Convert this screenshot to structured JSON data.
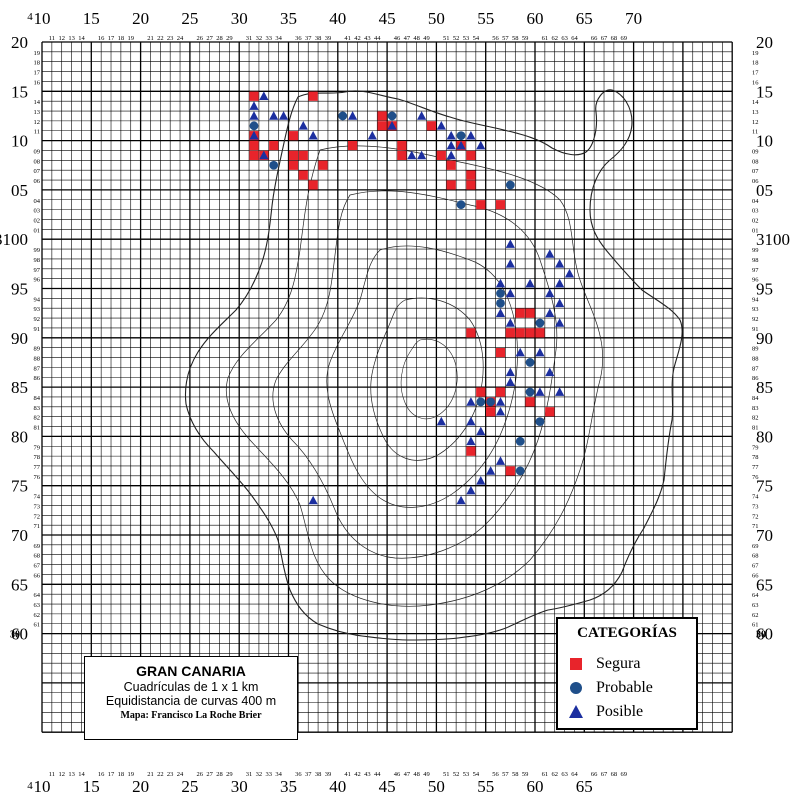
{
  "map": {
    "x_top_labels": [
      "10",
      "15",
      "20",
      "25",
      "30",
      "35",
      "40",
      "45",
      "50",
      "55",
      "60",
      "65",
      "70"
    ],
    "x_bottom_labels": [
      "10",
      "15",
      "20",
      "25",
      "30",
      "35",
      "40",
      "45",
      "50",
      "55",
      "60",
      "65"
    ],
    "x_corner_label_top": "4",
    "x_corner_label_bottom": "4",
    "y_major_labels": [
      "20",
      "15",
      "10",
      "05",
      "3100",
      "95",
      "90",
      "85",
      "80",
      "75",
      "70",
      "65",
      "60"
    ],
    "y_corner_label": "30",
    "small_x_labels": [
      "11",
      "12",
      "13",
      "14",
      "16",
      "17",
      "18",
      "19",
      "21",
      "22",
      "23",
      "24",
      "26",
      "27",
      "28",
      "29",
      "31",
      "32",
      "33",
      "34",
      "36",
      "37",
      "38",
      "39",
      "41",
      "42",
      "43",
      "44",
      "46",
      "47",
      "48",
      "49",
      "51",
      "52",
      "53",
      "54",
      "56",
      "57",
      "58",
      "59",
      "61",
      "62",
      "63",
      "64",
      "66",
      "67",
      "68",
      "69"
    ],
    "small_y_labels": [
      "19",
      "18",
      "17",
      "16",
      "14",
      "13",
      "12",
      "11",
      "09",
      "08",
      "07",
      "06",
      "04",
      "03",
      "02",
      "01",
      "99",
      "98",
      "97",
      "96",
      "94",
      "93",
      "92",
      "91",
      "89",
      "88",
      "87",
      "86",
      "84",
      "83",
      "82",
      "81",
      "79",
      "78",
      "77",
      "76",
      "74",
      "73",
      "72",
      "71",
      "69",
      "68",
      "67",
      "66",
      "64",
      "63",
      "62",
      "61"
    ],
    "colors": {
      "segura": "#e8242b",
      "probable": "#1f4f8a",
      "posible": "#1c2fa0",
      "grid": "#000000"
    }
  },
  "title_box": {
    "title": "GRAN CANARIA",
    "line1": "Cuadrículas de 1 x 1 km",
    "line2": "Equidistancia de curvas 400 m",
    "line3": "Mapa: Francisco La Roche Brier"
  },
  "legend": {
    "title": "CATEGORÍAS",
    "items": [
      {
        "label": "Segura",
        "symbol": "square"
      },
      {
        "label": "Probable",
        "symbol": "circle"
      },
      {
        "label": "Posible",
        "symbol": "triangle"
      }
    ]
  },
  "observations": {
    "segura": [
      [
        31,
        15
      ],
      [
        37,
        15
      ],
      [
        44,
        13
      ],
      [
        49,
        12
      ],
      [
        31,
        11
      ],
      [
        35,
        11
      ],
      [
        44,
        12
      ],
      [
        45,
        12
      ],
      [
        41,
        10
      ],
      [
        31,
        10
      ],
      [
        33,
        10
      ],
      [
        46,
        10
      ],
      [
        52,
        10
      ],
      [
        31,
        9
      ],
      [
        32,
        9
      ],
      [
        35,
        9
      ],
      [
        36,
        9
      ],
      [
        46,
        9
      ],
      [
        50,
        9
      ],
      [
        53,
        9
      ],
      [
        35,
        8
      ],
      [
        38,
        8
      ],
      [
        51,
        8
      ],
      [
        36,
        7
      ],
      [
        53,
        7
      ],
      [
        37,
        6
      ],
      [
        51,
        6
      ],
      [
        53,
        6
      ],
      [
        54,
        4
      ],
      [
        56,
        4
      ],
      [
        58,
        93
      ],
      [
        59,
        93
      ],
      [
        57,
        91
      ],
      [
        58,
        91
      ],
      [
        59,
        91
      ],
      [
        60,
        91
      ],
      [
        53,
        91
      ],
      [
        56,
        89
      ],
      [
        54,
        85
      ],
      [
        56,
        85
      ],
      [
        55,
        84
      ],
      [
        59,
        84
      ],
      [
        55,
        83
      ],
      [
        61,
        83
      ],
      [
        53,
        79
      ],
      [
        57,
        77
      ]
    ],
    "probable": [
      [
        40,
        13
      ],
      [
        45,
        13
      ],
      [
        31,
        12
      ],
      [
        52,
        11
      ],
      [
        33,
        8
      ],
      [
        52,
        4
      ],
      [
        57,
        6
      ],
      [
        56,
        95
      ],
      [
        56,
        94
      ],
      [
        60,
        92
      ],
      [
        59,
        88
      ],
      [
        59,
        85
      ],
      [
        55,
        84
      ],
      [
        54,
        84
      ],
      [
        60,
        82
      ],
      [
        58,
        80
      ],
      [
        58,
        77
      ]
    ],
    "posible": [
      [
        32,
        15
      ],
      [
        31,
        14
      ],
      [
        31,
        13
      ],
      [
        33,
        13
      ],
      [
        34,
        13
      ],
      [
        41,
        13
      ],
      [
        48,
        13
      ],
      [
        36,
        12
      ],
      [
        45,
        12
      ],
      [
        50,
        12
      ],
      [
        51,
        11
      ],
      [
        53,
        11
      ],
      [
        37,
        11
      ],
      [
        43,
        11
      ],
      [
        47,
        9
      ],
      [
        48,
        9
      ],
      [
        31,
        11
      ],
      [
        32,
        9
      ],
      [
        54,
        10
      ],
      [
        51,
        10
      ],
      [
        52,
        10
      ],
      [
        51,
        9
      ],
      [
        57,
        100
      ],
      [
        61,
        99
      ],
      [
        62,
        98
      ],
      [
        57,
        98
      ],
      [
        63,
        97
      ],
      [
        62,
        96
      ],
      [
        56,
        96
      ],
      [
        59,
        96
      ],
      [
        61,
        95
      ],
      [
        57,
        95
      ],
      [
        62,
        94
      ],
      [
        56,
        93
      ],
      [
        61,
        93
      ],
      [
        62,
        92
      ],
      [
        57,
        92
      ],
      [
        58,
        89
      ],
      [
        60,
        89
      ],
      [
        57,
        87
      ],
      [
        61,
        87
      ],
      [
        57,
        86
      ],
      [
        62,
        85
      ],
      [
        60,
        85
      ],
      [
        56,
        84
      ],
      [
        53,
        84
      ],
      [
        56,
        83
      ],
      [
        53,
        82
      ],
      [
        54,
        81
      ],
      [
        53,
        80
      ],
      [
        50,
        82
      ],
      [
        56,
        78
      ],
      [
        55,
        77
      ],
      [
        54,
        76
      ],
      [
        53,
        75
      ],
      [
        52,
        74
      ],
      [
        37,
        74
      ]
    ]
  }
}
